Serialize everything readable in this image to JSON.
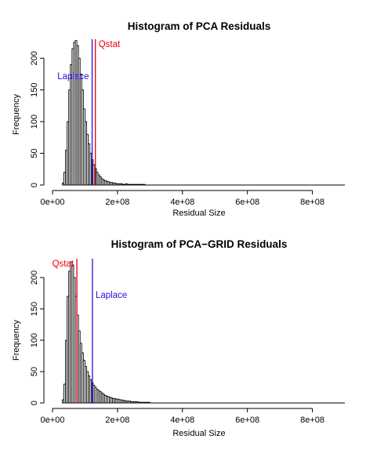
{
  "colors": {
    "qstat": "#e8000b",
    "laplace": "#2a0ee0",
    "bars": "#000000",
    "background": "#ffffff"
  },
  "chart_data": [
    {
      "type": "bar",
      "title": "Histogram of PCA Residuals",
      "xlabel": "Residual Size",
      "ylabel": "Frequency",
      "xlim": [
        0,
        900000000
      ],
      "ylim": [
        0,
        230
      ],
      "x_ticks": [
        0,
        200000000,
        400000000,
        600000000,
        800000000
      ],
      "x_tick_labels": [
        "0e+00",
        "2e+08",
        "4e+08",
        "6e+08",
        "8e+08"
      ],
      "y_ticks": [
        0,
        50,
        100,
        150,
        200
      ],
      "y_tick_labels": [
        "0",
        "50",
        "100",
        "150",
        "200"
      ],
      "bin_width": 5000000,
      "bin_start": 30000000,
      "frequencies": [
        3,
        20,
        55,
        100,
        150,
        190,
        215,
        225,
        228,
        220,
        200,
        175,
        150,
        120,
        100,
        80,
        65,
        50,
        40,
        32,
        26,
        20,
        16,
        13,
        10,
        8,
        7,
        6,
        5,
        4,
        4,
        3,
        3,
        2,
        2,
        2,
        2,
        1,
        1,
        2,
        1,
        1,
        1,
        1,
        1,
        1,
        1,
        1,
        1,
        1,
        1
      ],
      "annotations": [
        {
          "label": "Qstat",
          "x": 132000000,
          "color": "#e8000b",
          "label_side": "right"
        },
        {
          "label": "Laplace",
          "x": 122000000,
          "color": "#2a0ee0",
          "label_side": "left"
        }
      ]
    },
    {
      "type": "bar",
      "title": "Histogram of PCA−GRID Residuals",
      "xlabel": "Residual Size",
      "ylabel": "Frequency",
      "xlim": [
        0,
        900000000
      ],
      "ylim": [
        0,
        230
      ],
      "x_ticks": [
        0,
        200000000,
        400000000,
        600000000,
        800000000
      ],
      "x_tick_labels": [
        "0e+00",
        "2e+08",
        "4e+08",
        "6e+08",
        "8e+08"
      ],
      "y_ticks": [
        0,
        50,
        100,
        150,
        200
      ],
      "y_tick_labels": [
        "0",
        "50",
        "100",
        "150",
        "200"
      ],
      "bin_width": 5000000,
      "bin_start": 30000000,
      "frequencies": [
        5,
        30,
        100,
        170,
        210,
        225,
        220,
        200,
        170,
        140,
        115,
        95,
        80,
        68,
        58,
        50,
        43,
        37,
        32,
        28,
        25,
        22,
        20,
        18,
        16,
        14,
        12,
        11,
        10,
        9,
        8,
        7,
        7,
        6,
        6,
        5,
        5,
        4,
        4,
        3,
        3,
        3,
        2,
        2,
        2,
        2,
        2,
        1,
        1,
        1,
        1,
        1,
        1,
        1
      ],
      "annotations": [
        {
          "label": "Qstat",
          "x": 75000000,
          "color": "#e8000b",
          "label_side": "left"
        },
        {
          "label": "Laplace",
          "x": 123000000,
          "color": "#2a0ee0",
          "label_side": "right"
        }
      ]
    }
  ]
}
